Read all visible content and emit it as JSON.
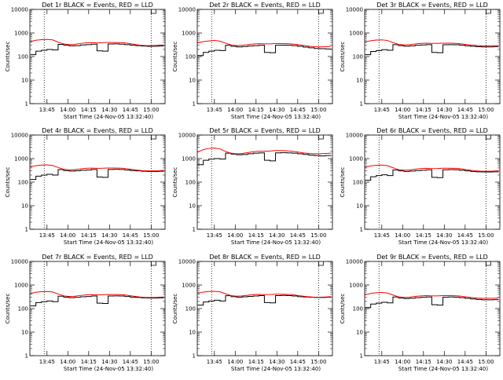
{
  "figure": {
    "xlabel": "Start Time (24-Nov-05 13:32:40)",
    "ylabel": "Counts/sec",
    "colors": {
      "events": "#000000",
      "lld": "#ff0000",
      "axes": "#000000",
      "background": "#ffffff"
    }
  },
  "chart_data": [
    {
      "type": "line",
      "title": "Det 1r BLACK = Events, RED = LLD",
      "xlabel": "Start Time (24-Nov-05 13:32:40)",
      "ylabel": "Counts/sec",
      "yscale": "log",
      "ylim": [
        1,
        10000
      ],
      "xlim": [
        "13:32:40",
        "15:10:00"
      ],
      "x_ticks": [
        "13:45",
        "14:00",
        "14:15",
        "14:30",
        "14:45",
        "15:00"
      ],
      "y_ticks": [
        "1",
        "10",
        "100",
        "1000",
        "10000"
      ],
      "vlines": [
        "13:43",
        "15:00"
      ],
      "x": [
        "13:33",
        "13:37",
        "13:41",
        "13:45",
        "13:49",
        "13:53",
        "13:57",
        "14:01",
        "14:05",
        "14:09",
        "14:13",
        "14:17",
        "14:21",
        "14:25",
        "14:29",
        "14:33",
        "14:37",
        "14:41",
        "14:45",
        "14:49",
        "14:53",
        "14:57",
        "15:01",
        "15:05",
        "15:09"
      ],
      "series": [
        {
          "role": "events",
          "color": "#000000",
          "values": [
            120,
            170,
            185,
            200,
            190,
            330,
            300,
            285,
            290,
            310,
            320,
            335,
            175,
            170,
            340,
            345,
            335,
            320,
            300,
            290,
            280,
            270,
            275,
            280,
            285
          ]
        },
        {
          "role": "lld",
          "color": "#ff0000",
          "values": [
            430,
            490,
            520,
            530,
            510,
            410,
            340,
            320,
            330,
            360,
            380,
            390,
            380,
            385,
            400,
            395,
            390,
            380,
            350,
            320,
            300,
            290,
            290,
            300,
            310
          ]
        }
      ]
    },
    {
      "type": "line",
      "title": "Det 2r BLACK = Events, RED = LLD",
      "xlabel": "Start Time (24-Nov-05 13:32:40)",
      "ylabel": "Counts/sec",
      "yscale": "log",
      "ylim": [
        1,
        10000
      ],
      "xlim": [
        "13:32:40",
        "15:10:00"
      ],
      "x_ticks": [
        "13:45",
        "14:00",
        "14:15",
        "14:30",
        "14:45",
        "15:00"
      ],
      "y_ticks": [
        "1",
        "10",
        "100",
        "1000",
        "10000"
      ],
      "vlines": [
        "13:43",
        "15:00"
      ],
      "x": [
        "13:33",
        "13:37",
        "13:41",
        "13:45",
        "13:49",
        "13:53",
        "13:57",
        "14:01",
        "14:05",
        "14:09",
        "14:13",
        "14:17",
        "14:21",
        "14:25",
        "14:29",
        "14:33",
        "14:37",
        "14:41",
        "14:45",
        "14:49",
        "14:53",
        "14:57",
        "15:01",
        "15:05",
        "15:09"
      ],
      "series": [
        {
          "role": "events",
          "color": "#000000",
          "values": [
            110,
            150,
            170,
            185,
            180,
            300,
            270,
            255,
            265,
            280,
            290,
            300,
            150,
            145,
            300,
            305,
            300,
            290,
            270,
            250,
            235,
            220,
            215,
            210,
            215
          ]
        },
        {
          "role": "lld",
          "color": "#ff0000",
          "values": [
            380,
            430,
            460,
            480,
            450,
            370,
            310,
            290,
            300,
            320,
            340,
            350,
            345,
            345,
            355,
            355,
            350,
            340,
            320,
            295,
            275,
            260,
            255,
            260,
            270
          ]
        }
      ]
    },
    {
      "type": "line",
      "title": "Det 3r BLACK = Events, RED = LLD",
      "xlabel": "Start Time (24-Nov-05 13:32:40)",
      "ylabel": "Counts/sec",
      "yscale": "log",
      "ylim": [
        1,
        10000
      ],
      "xlim": [
        "13:32:40",
        "15:10:00"
      ],
      "x_ticks": [
        "13:45",
        "14:00",
        "14:15",
        "14:30",
        "14:45",
        "15:00"
      ],
      "y_ticks": [
        "1",
        "10",
        "100",
        "1000",
        "10000"
      ],
      "vlines": [
        "13:43",
        "15:00"
      ],
      "x": [
        "13:33",
        "13:37",
        "13:41",
        "13:45",
        "13:49",
        "13:53",
        "13:57",
        "14:01",
        "14:05",
        "14:09",
        "14:13",
        "14:17",
        "14:21",
        "14:25",
        "14:29",
        "14:33",
        "14:37",
        "14:41",
        "14:45",
        "14:49",
        "14:53",
        "14:57",
        "15:01",
        "15:05",
        "15:09"
      ],
      "series": [
        {
          "role": "events",
          "color": "#000000",
          "values": [
            120,
            165,
            180,
            195,
            185,
            320,
            290,
            275,
            285,
            300,
            310,
            320,
            150,
            145,
            315,
            320,
            315,
            300,
            285,
            270,
            260,
            255,
            255,
            260,
            265
          ]
        },
        {
          "role": "lld",
          "color": "#ff0000",
          "values": [
            420,
            470,
            500,
            510,
            480,
            390,
            330,
            310,
            320,
            340,
            360,
            370,
            360,
            360,
            370,
            370,
            365,
            350,
            330,
            310,
            295,
            285,
            285,
            290,
            295
          ]
        }
      ]
    },
    {
      "type": "line",
      "title": "Det 4r BLACK = Events, RED = LLD",
      "xlabel": "Start Time (24-Nov-05 13:32:40)",
      "ylabel": "Counts/sec",
      "yscale": "log",
      "ylim": [
        1,
        10000
      ],
      "xlim": [
        "13:32:40",
        "15:10:00"
      ],
      "x_ticks": [
        "13:45",
        "14:00",
        "14:15",
        "14:30",
        "14:45",
        "15:00"
      ],
      "y_ticks": [
        "1",
        "10",
        "100",
        "1000",
        "10000"
      ],
      "vlines": [
        "13:43",
        "15:00"
      ],
      "x": [
        "13:33",
        "13:37",
        "13:41",
        "13:45",
        "13:49",
        "13:53",
        "13:57",
        "14:01",
        "14:05",
        "14:09",
        "14:13",
        "14:17",
        "14:21",
        "14:25",
        "14:29",
        "14:33",
        "14:37",
        "14:41",
        "14:45",
        "14:49",
        "14:53",
        "14:57",
        "15:01",
        "15:05",
        "15:09"
      ],
      "series": [
        {
          "role": "events",
          "color": "#000000",
          "values": [
            130,
            180,
            200,
            215,
            200,
            340,
            310,
            295,
            305,
            320,
            330,
            345,
            165,
            160,
            345,
            350,
            345,
            330,
            310,
            300,
            290,
            285,
            285,
            290,
            295
          ]
        },
        {
          "role": "lld",
          "color": "#ff0000",
          "values": [
            440,
            500,
            530,
            540,
            510,
            420,
            350,
            330,
            340,
            365,
            385,
            395,
            385,
            390,
            400,
            400,
            395,
            385,
            355,
            330,
            310,
            300,
            300,
            305,
            315
          ]
        }
      ]
    },
    {
      "type": "line",
      "title": "Det 5r BLACK = Events, RED = LLD",
      "xlabel": "Start Time (24-Nov-05 13:32:40)",
      "ylabel": "Counts/sec",
      "yscale": "log",
      "ylim": [
        1,
        10000
      ],
      "xlim": [
        "13:32:40",
        "15:10:00"
      ],
      "x_ticks": [
        "13:45",
        "14:00",
        "14:15",
        "14:30",
        "14:45",
        "15:00"
      ],
      "y_ticks": [
        "1",
        "10",
        "100",
        "1000",
        "10000"
      ],
      "vlines": [
        "13:43",
        "15:00"
      ],
      "x": [
        "13:33",
        "13:37",
        "13:41",
        "13:45",
        "13:49",
        "13:53",
        "13:57",
        "14:01",
        "14:05",
        "14:09",
        "14:13",
        "14:17",
        "14:21",
        "14:25",
        "14:29",
        "14:33",
        "14:37",
        "14:41",
        "14:45",
        "14:49",
        "14:53",
        "14:57",
        "15:01",
        "15:05",
        "15:09"
      ],
      "series": [
        {
          "role": "events",
          "color": "#000000",
          "values": [
            550,
            850,
            950,
            1000,
            950,
            1700,
            1550,
            1450,
            1500,
            1600,
            1700,
            1750,
            850,
            800,
            1750,
            1800,
            1750,
            1700,
            1600,
            1500,
            1400,
            1350,
            1300,
            1350,
            1400
          ]
        },
        {
          "role": "lld",
          "color": "#ff0000",
          "values": [
            1900,
            2400,
            2700,
            2800,
            2600,
            2000,
            1700,
            1600,
            1650,
            1800,
            1950,
            2050,
            2050,
            2100,
            2200,
            2200,
            2150,
            2050,
            1900,
            1750,
            1650,
            1600,
            1600,
            1650,
            1700
          ]
        }
      ]
    },
    {
      "type": "line",
      "title": "Det 6r BLACK = Events, RED = LLD",
      "xlabel": "Start Time (24-Nov-05 13:32:40)",
      "ylabel": "Counts/sec",
      "yscale": "log",
      "ylim": [
        1,
        10000
      ],
      "xlim": [
        "13:32:40",
        "15:10:00"
      ],
      "x_ticks": [
        "13:45",
        "14:00",
        "14:15",
        "14:30",
        "14:45",
        "15:00"
      ],
      "y_ticks": [
        "1",
        "10",
        "100",
        "1000",
        "10000"
      ],
      "vlines": [
        "13:43",
        "15:00"
      ],
      "x": [
        "13:33",
        "13:37",
        "13:41",
        "13:45",
        "13:49",
        "13:53",
        "13:57",
        "14:01",
        "14:05",
        "14:09",
        "14:13",
        "14:17",
        "14:21",
        "14:25",
        "14:29",
        "14:33",
        "14:37",
        "14:41",
        "14:45",
        "14:49",
        "14:53",
        "14:57",
        "15:01",
        "15:05",
        "15:09"
      ],
      "series": [
        {
          "role": "events",
          "color": "#000000",
          "values": [
            120,
            170,
            190,
            205,
            190,
            330,
            300,
            285,
            295,
            310,
            320,
            335,
            160,
            155,
            335,
            340,
            335,
            320,
            300,
            285,
            275,
            270,
            270,
            275,
            280
          ]
        },
        {
          "role": "lld",
          "color": "#ff0000",
          "values": [
            430,
            490,
            520,
            530,
            500,
            410,
            340,
            320,
            330,
            355,
            375,
            385,
            375,
            380,
            390,
            390,
            385,
            375,
            345,
            320,
            300,
            290,
            290,
            295,
            305
          ]
        }
      ]
    },
    {
      "type": "line",
      "title": "Det 7r BLACK = Events, RED = LLD",
      "xlabel": "Start Time (24-Nov-05 13:32:40)",
      "ylabel": "Counts/sec",
      "yscale": "log",
      "ylim": [
        1,
        10000
      ],
      "xlim": [
        "13:32:40",
        "15:10:00"
      ],
      "x_ticks": [
        "13:45",
        "14:00",
        "14:15",
        "14:30",
        "14:45",
        "15:00"
      ],
      "y_ticks": [
        "1",
        "10",
        "100",
        "1000",
        "10000"
      ],
      "vlines": [
        "13:43",
        "15:00"
      ],
      "x": [
        "13:33",
        "13:37",
        "13:41",
        "13:45",
        "13:49",
        "13:53",
        "13:57",
        "14:01",
        "14:05",
        "14:09",
        "14:13",
        "14:17",
        "14:21",
        "14:25",
        "14:29",
        "14:33",
        "14:37",
        "14:41",
        "14:45",
        "14:49",
        "14:53",
        "14:57",
        "15:01",
        "15:05",
        "15:09"
      ],
      "series": [
        {
          "role": "events",
          "color": "#000000",
          "values": [
            130,
            180,
            195,
            210,
            195,
            335,
            305,
            290,
            300,
            315,
            325,
            340,
            170,
            165,
            340,
            345,
            340,
            325,
            305,
            295,
            285,
            280,
            280,
            285,
            290
          ]
        },
        {
          "role": "lld",
          "color": "#ff0000",
          "values": [
            430,
            490,
            520,
            530,
            505,
            415,
            345,
            325,
            335,
            360,
            380,
            390,
            380,
            385,
            395,
            395,
            390,
            380,
            350,
            325,
            305,
            295,
            295,
            300,
            310
          ]
        }
      ]
    },
    {
      "type": "line",
      "title": "Det 8r BLACK = Events, RED = LLD",
      "xlabel": "Start Time (24-Nov-05 13:32:40)",
      "ylabel": "Counts/sec",
      "yscale": "log",
      "ylim": [
        1,
        10000
      ],
      "xlim": [
        "13:32:40",
        "15:10:00"
      ],
      "x_ticks": [
        "13:45",
        "14:00",
        "14:15",
        "14:30",
        "14:45",
        "15:00"
      ],
      "y_ticks": [
        "1",
        "10",
        "100",
        "1000",
        "10000"
      ],
      "vlines": [
        "13:43",
        "15:00"
      ],
      "x": [
        "13:33",
        "13:37",
        "13:41",
        "13:45",
        "13:49",
        "13:53",
        "13:57",
        "14:01",
        "14:05",
        "14:09",
        "14:13",
        "14:17",
        "14:21",
        "14:25",
        "14:29",
        "14:33",
        "14:37",
        "14:41",
        "14:45",
        "14:49",
        "14:53",
        "14:57",
        "15:01",
        "15:05",
        "15:09"
      ],
      "series": [
        {
          "role": "events",
          "color": "#000000",
          "values": [
            140,
            190,
            210,
            225,
            210,
            350,
            320,
            305,
            315,
            330,
            340,
            355,
            180,
            175,
            355,
            360,
            355,
            340,
            320,
            310,
            300,
            295,
            295,
            300,
            305
          ]
        },
        {
          "role": "lld",
          "color": "#ff0000",
          "values": [
            440,
            500,
            530,
            540,
            515,
            425,
            355,
            335,
            345,
            370,
            390,
            400,
            390,
            395,
            405,
            405,
            400,
            390,
            360,
            335,
            315,
            305,
            305,
            310,
            320
          ]
        }
      ]
    },
    {
      "type": "line",
      "title": "Det 9r BLACK = Events, RED = LLD",
      "xlabel": "Start Time (24-Nov-05 13:32:40)",
      "ylabel": "Counts/sec",
      "yscale": "log",
      "ylim": [
        1,
        10000
      ],
      "xlim": [
        "13:32:40",
        "15:10:00"
      ],
      "x_ticks": [
        "13:45",
        "14:00",
        "14:15",
        "14:30",
        "14:45",
        "15:00"
      ],
      "y_ticks": [
        "1",
        "10",
        "100",
        "1000",
        "10000"
      ],
      "vlines": [
        "13:43",
        "15:00"
      ],
      "x": [
        "13:33",
        "13:37",
        "13:41",
        "13:45",
        "13:49",
        "13:53",
        "13:57",
        "14:01",
        "14:05",
        "14:09",
        "14:13",
        "14:17",
        "14:21",
        "14:25",
        "14:29",
        "14:33",
        "14:37",
        "14:41",
        "14:45",
        "14:49",
        "14:53",
        "14:57",
        "15:01",
        "15:05",
        "15:09"
      ],
      "series": [
        {
          "role": "events",
          "color": "#000000",
          "values": [
            110,
            155,
            170,
            185,
            175,
            310,
            280,
            265,
            275,
            290,
            300,
            310,
            145,
            140,
            305,
            310,
            305,
            290,
            270,
            255,
            245,
            235,
            235,
            240,
            245
          ]
        },
        {
          "role": "lld",
          "color": "#ff0000",
          "values": [
            380,
            440,
            470,
            480,
            455,
            375,
            315,
            295,
            305,
            330,
            345,
            355,
            345,
            345,
            355,
            355,
            350,
            340,
            315,
            295,
            280,
            270,
            270,
            275,
            280
          ]
        }
      ]
    }
  ]
}
